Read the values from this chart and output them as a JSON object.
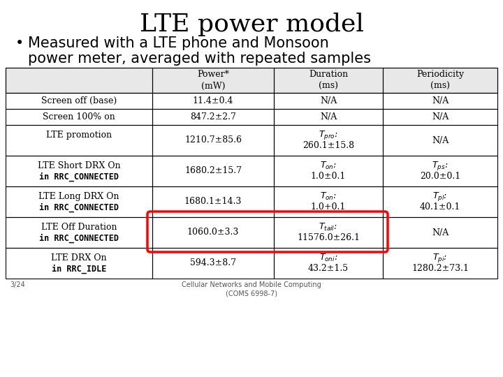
{
  "title": "LTE power model",
  "subtitle_line1": "Measured with a LTE phone and Monsoon",
  "subtitle_line2": "power meter, averaged with repeated samples",
  "col_headers": [
    "",
    "Power*\n(mW)",
    "Duration\n(ms)",
    "Periodicity\n(ms)"
  ],
  "rows": [
    {
      "label": "Screen off (base)",
      "label2": "",
      "power": "11.4±0.4",
      "duration_prefix": "",
      "duration": "N/A",
      "periodicity_prefix": "",
      "periodicity": "N/A",
      "highlight": false,
      "bold_label2": false
    },
    {
      "label": "Screen 100% on",
      "label2": "",
      "power": "847.2±2.7",
      "duration_prefix": "",
      "duration": "N/A",
      "periodicity_prefix": "",
      "periodicity": "N/A",
      "highlight": false,
      "bold_label2": false
    },
    {
      "label": "LTE promotion",
      "label2": "",
      "power": "1210.7±85.6",
      "duration_prefix": "$T_{pro}$:",
      "duration": "260.1±15.8",
      "periodicity_prefix": "",
      "periodicity": "N/A",
      "highlight": false,
      "bold_label2": false
    },
    {
      "label": "LTE Short DRX On",
      "label2": "in RRC_CONNECTED",
      "power": "1680.2±15.7",
      "duration_prefix": "$T_{on}$:",
      "duration": "1.0±0.1",
      "periodicity_prefix": "$T_{ps}$:",
      "periodicity": "20.0±0.1",
      "highlight": false,
      "bold_label2": true
    },
    {
      "label": "LTE Long DRX On",
      "label2": "in RRC_CONNECTED",
      "power": "1680.1±14.3",
      "duration_prefix": "$T_{on}$:",
      "duration": "1.0+0.1",
      "periodicity_prefix": "$T_{pl}$:",
      "periodicity": "40.1±0.1",
      "highlight": false,
      "bold_label2": true
    },
    {
      "label": "LTE Off Duration",
      "label2": "in RRC_CONNECTED",
      "power": "1060.0±3.3",
      "duration_prefix": "$T_{tail}$:",
      "duration": "11576.0±26.1",
      "periodicity_prefix": "",
      "periodicity": "N/A",
      "highlight": true,
      "bold_label2": true
    },
    {
      "label": "LTE DRX On",
      "label2": "in RRC_IDLE",
      "power": "594.3±8.7",
      "duration_prefix": "$T_{oni}$:",
      "duration": "43.2±1.5",
      "periodicity_prefix": "$T_{pi}$:",
      "periodicity": "1280.2±73.1",
      "highlight": false,
      "bold_label2": true
    }
  ],
  "footer_left": "3/24",
  "footer_center": "Cellular Networks and Mobile Computing\n(COMS 6998-7)",
  "bg_color": "#ffffff"
}
